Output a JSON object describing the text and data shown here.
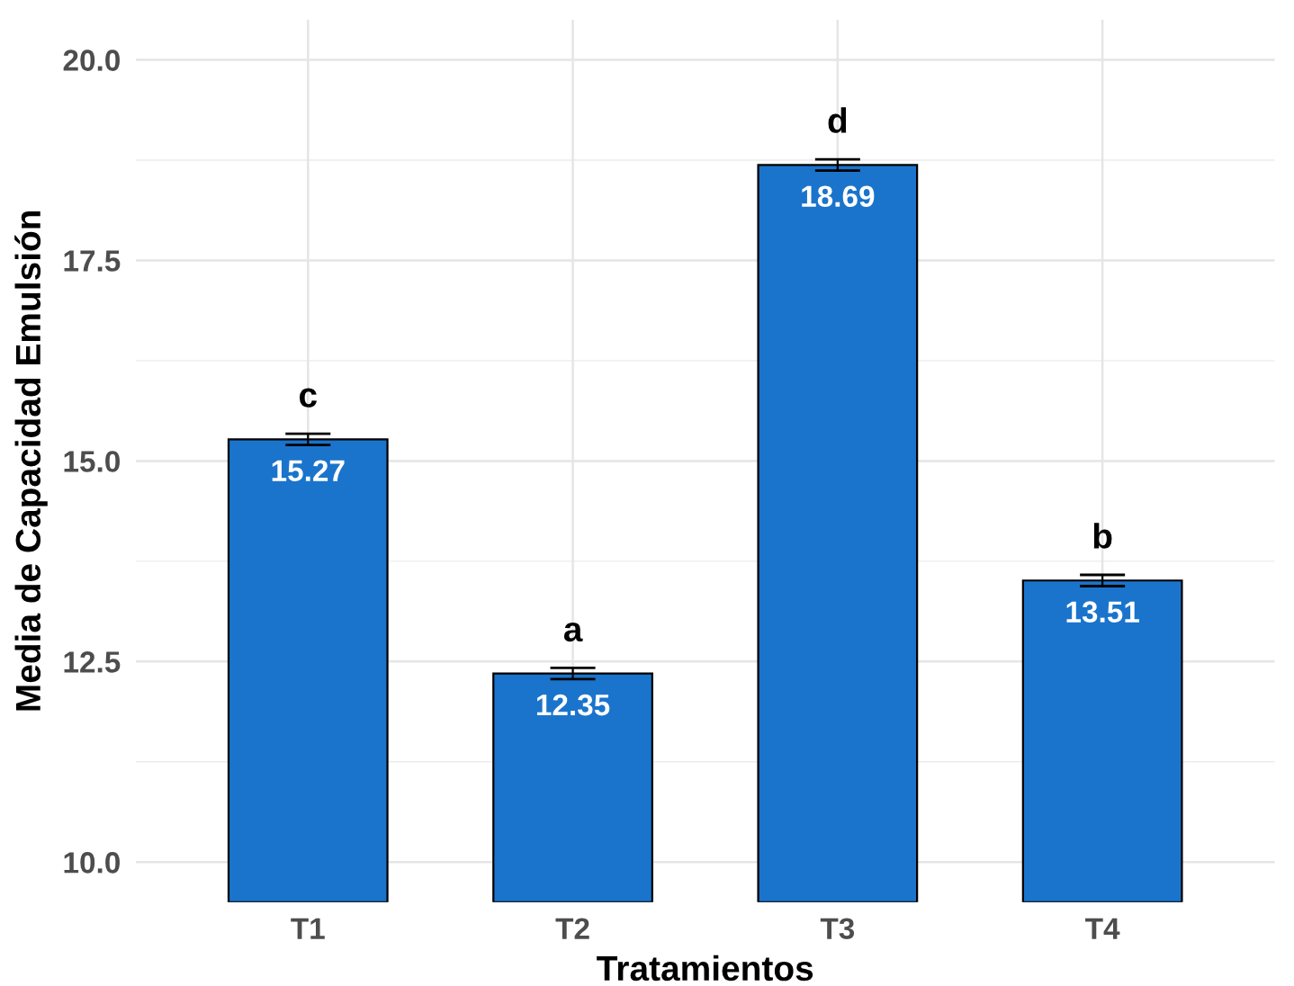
{
  "chart_data": {
    "type": "bar",
    "xlabel": "Tratamientos",
    "ylabel": "Media de Capacidad Emulsión",
    "categories": [
      "T1",
      "T2",
      "T3",
      "T4"
    ],
    "values": [
      15.27,
      12.35,
      18.69,
      13.51
    ],
    "errors": [
      0.07,
      0.07,
      0.07,
      0.07
    ],
    "color": "#1a74cc",
    "data_labels": true,
    "ylim": [
      9.5,
      20.5
    ],
    "yticks": [
      {
        "value": 10,
        "label": "10.0"
      },
      12.5,
      {
        "value": 15,
        "label": "15.0"
      },
      17.5,
      {
        "value": 20,
        "label": "20.0"
      }
    ],
    "grid": true,
    "legend": false,
    "annotations": [
      {
        "text": "c",
        "x": "T1",
        "y": 15.27
      },
      {
        "text": "a",
        "x": "T2",
        "y": 12.35
      },
      {
        "text": "d",
        "x": "T3",
        "y": 18.69
      },
      {
        "text": "b",
        "x": "T4",
        "y": 13.51
      }
    ]
  }
}
